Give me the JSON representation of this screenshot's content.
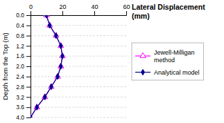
{
  "chart_data": {
    "type": "line",
    "title": "Lateral Displacement\n(mm)",
    "y_label": "Depth from the Top (m)",
    "x": [
      10,
      12,
      16,
      19,
      20,
      19,
      17,
      13,
      9,
      4,
      0
    ],
    "series": [
      {
        "name": "Jewell-Milligan\nmethod",
        "color": "#FF00FF",
        "marker": "triangle",
        "values": [
          0,
          0.4,
          0.8,
          1.2,
          1.6,
          2.0,
          2.4,
          2.8,
          3.2,
          3.6,
          4.0
        ]
      },
      {
        "name": "Analytical model",
        "color": "#00008B",
        "marker": "diamond",
        "values": [
          0,
          0.4,
          0.8,
          1.2,
          1.6,
          2.0,
          2.4,
          2.8,
          3.2,
          3.6,
          4.0
        ]
      }
    ],
    "xlim": [
      0,
      60
    ],
    "xticks": [
      0,
      20,
      40,
      60
    ],
    "ylim": [
      4,
      0
    ],
    "yticks": [
      {
        "value": 0,
        "label": "0.0"
      },
      0.4,
      0.8,
      1.2,
      1.6,
      {
        "value": 2,
        "label": "2.0"
      },
      2.4,
      2.8,
      3.2,
      3.6,
      {
        "value": 4,
        "label": "4.0"
      }
    ],
    "grid": "y",
    "legend": "right"
  }
}
